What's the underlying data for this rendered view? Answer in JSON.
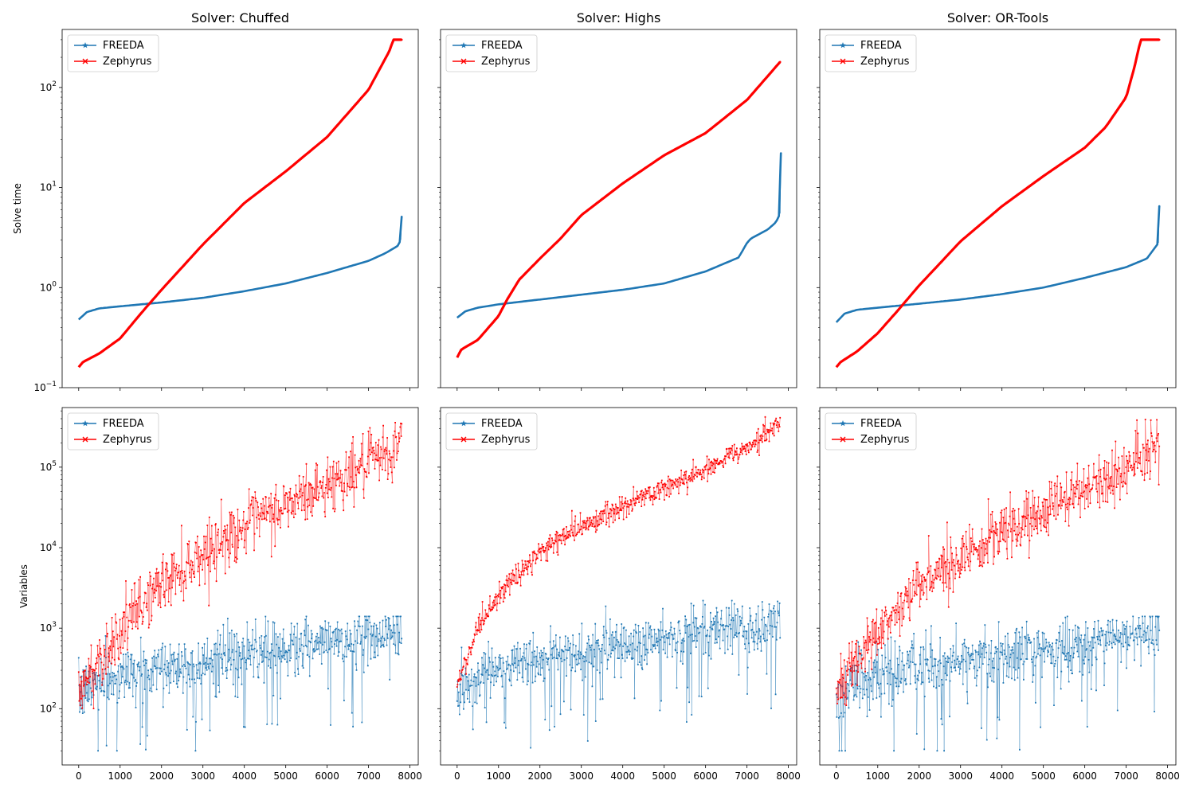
{
  "chart_data": {
    "type": "line",
    "layout": "2x3 grid, shared x axes, rows share y axis",
    "x_ticks": [
      0,
      1000,
      2000,
      3000,
      4000,
      5000,
      6000,
      7000,
      8000
    ],
    "xlim": [
      -400,
      8200
    ],
    "legend": {
      "placement": "upper-left",
      "entries": [
        "FREEDA",
        "Zephyrus"
      ]
    },
    "colors": {
      "FREEDA": "#1f77b4",
      "Zephyrus": "#ff0000"
    },
    "markers": {
      "FREEDA": "star",
      "Zephyrus": "x"
    },
    "rows": [
      {
        "ylabel": "Solve time",
        "yscale": "log",
        "ylim": [
          0.1,
          380
        ],
        "y_ticks": [
          {
            "value": 0.1,
            "base": "10",
            "exp": "−1"
          },
          {
            "value": 1,
            "base": "10",
            "exp": "0"
          },
          {
            "value": 10,
            "base": "10",
            "exp": "1"
          },
          {
            "value": 100,
            "base": "10",
            "exp": "2"
          }
        ]
      },
      {
        "ylabel": "Variables",
        "yscale": "log",
        "ylim": [
          20,
          550000
        ],
        "y_ticks": [
          {
            "value": 100,
            "base": "10",
            "exp": "2"
          },
          {
            "value": 1000,
            "base": "10",
            "exp": "3"
          },
          {
            "value": 10000,
            "base": "10",
            "exp": "4"
          },
          {
            "value": 100000,
            "base": "10",
            "exp": "5"
          }
        ]
      }
    ],
    "panels": [
      {
        "title": "Solver: Chuffed",
        "solve_time": {
          "FREEDA": {
            "x": [
              0,
              200,
              500,
              1000,
              2000,
              3000,
              4000,
              5000,
              6000,
              7000,
              7400,
              7700,
              7780,
              7800
            ],
            "y": [
              0.48,
              0.57,
              0.62,
              0.65,
              0.71,
              0.79,
              0.92,
              1.1,
              1.4,
              1.85,
              2.2,
              2.6,
              3.0,
              5.1
            ]
          },
          "Zephyrus": {
            "x": [
              0,
              100,
              500,
              1000,
              1500,
              2000,
              3000,
              4000,
              5000,
              6000,
              7000,
              7500,
              7600,
              7800
            ],
            "y": [
              0.16,
              0.18,
              0.22,
              0.31,
              0.55,
              0.95,
              2.7,
              7.0,
              14.5,
              32.0,
              95.0,
              230.0,
              300.0,
              300.0
            ]
          }
        },
        "variables": {
          "FREEDA": {
            "x": [
              0,
              500,
              1000,
              2000,
              3000,
              4000,
              5000,
              6000,
              7000,
              7800
            ],
            "center": [
              140,
              230,
              270,
              330,
              380,
              460,
              540,
              640,
              800,
              1000
            ],
            "spread": 0.35,
            "floor": 30,
            "cap": 1400
          },
          "Zephyrus": {
            "x": [
              0,
              250,
              500,
              1000,
              1500,
              2000,
              2500,
              3000,
              4000,
              5000,
              6000,
              7000,
              7500,
              7800
            ],
            "center": [
              160,
              250,
              420,
              900,
              1900,
              3500,
              5500,
              8500,
              18000,
              33000,
              60000,
              110000,
              140000,
              220000
            ],
            "spread": 0.36,
            "floor": 70,
            "cap": 420000
          }
        }
      },
      {
        "title": "Solver: Highs",
        "solve_time": {
          "FREEDA": {
            "x": [
              0,
              200,
              500,
              1000,
              2000,
              3000,
              4000,
              5000,
              6000,
              6800,
              7000,
              7100,
              7500,
              7700,
              7800,
              7820
            ],
            "y": [
              0.5,
              0.58,
              0.63,
              0.68,
              0.76,
              0.85,
              0.95,
              1.1,
              1.45,
              2.0,
              2.8,
              3.1,
              3.8,
              4.5,
              5.5,
              22.0
            ]
          },
          "Zephyrus": {
            "x": [
              0,
              100,
              500,
              1000,
              1200,
              1500,
              2000,
              2500,
              3000,
              4000,
              5000,
              6000,
              7000,
              7800
            ],
            "y": [
              0.2,
              0.24,
              0.3,
              0.52,
              0.75,
              1.2,
              1.95,
              3.1,
              5.3,
              11.0,
              21.0,
              35.0,
              75.0,
              180.0
            ]
          }
        },
        "variables": {
          "FREEDA": {
            "x": [
              0,
              500,
              1000,
              2000,
              3000,
              4000,
              5000,
              6000,
              6900,
              6950,
              7100,
              7500,
              7800
            ],
            "center": [
              160,
              260,
              330,
              420,
              520,
              620,
              780,
              950,
              1200,
              700,
              750,
              1100,
              1300
            ],
            "spread": 0.33,
            "floor": 30,
            "cap": 2200
          },
          "Zephyrus": {
            "x": [
              0,
              250,
              500,
              1000,
              1500,
              2000,
              2500,
              3000,
              4000,
              5000,
              6000,
              7000,
              7500,
              7800
            ],
            "center": [
              200,
              450,
              900,
              2500,
              5000,
              8500,
              13000,
              18000,
              32000,
              55000,
              95000,
              180000,
              260000,
              360000
            ],
            "spread": 0.14,
            "floor": 100,
            "cap": 420000
          }
        }
      },
      {
        "title": "Solver: OR-Tools",
        "solve_time": {
          "FREEDA": {
            "x": [
              0,
              200,
              500,
              1000,
              2000,
              3000,
              4000,
              5000,
              6000,
              7000,
              7500,
              7780,
              7800
            ],
            "y": [
              0.45,
              0.55,
              0.6,
              0.63,
              0.69,
              0.76,
              0.86,
              1.0,
              1.25,
              1.6,
              1.95,
              2.8,
              6.5
            ]
          },
          "Zephyrus": {
            "x": [
              0,
              100,
              500,
              1000,
              1500,
              2000,
              3000,
              4000,
              5000,
              6000,
              6500,
              7000,
              7200,
              7350,
              7800
            ],
            "y": [
              0.16,
              0.18,
              0.23,
              0.35,
              0.6,
              1.05,
              2.9,
              6.5,
              13.0,
              25.0,
              40.0,
              80.0,
              160.0,
              300.0,
              300.0
            ]
          }
        },
        "variables": {
          "FREEDA": {
            "x": [
              0,
              500,
              1000,
              2000,
              3000,
              4000,
              5000,
              6000,
              7000,
              7800
            ],
            "center": [
              140,
              220,
              260,
              320,
              370,
              450,
              530,
              620,
              780,
              980
            ],
            "spread": 0.35,
            "floor": 30,
            "cap": 1400
          },
          "Zephyrus": {
            "x": [
              0,
              250,
              500,
              1000,
              1500,
              2000,
              2500,
              3000,
              4000,
              5000,
              6000,
              7000,
              7500,
              7800
            ],
            "center": [
              160,
              260,
              420,
              900,
              1800,
              3200,
              5000,
              7500,
              15000,
              28000,
              50000,
              95000,
              130000,
              160000
            ],
            "spread": 0.34,
            "floor": 60,
            "cap": 420000
          }
        }
      }
    ]
  }
}
